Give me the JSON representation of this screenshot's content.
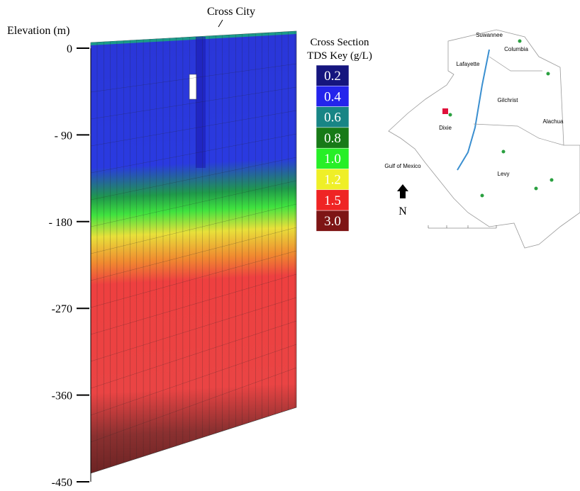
{
  "section": {
    "title": "Cross City",
    "axis_label": "Elevation (m)",
    "ylim": [
      0,
      -450
    ],
    "yticks": [
      {
        "value": 0,
        "label": "0"
      },
      {
        "value": -90,
        "label": "- 90"
      },
      {
        "value": -180,
        "label": "- 180"
      },
      {
        "value": -270,
        "label": "-270"
      },
      {
        "value": -360,
        "label": "-360"
      },
      {
        "value": -450,
        "label": "-450"
      }
    ]
  },
  "key": {
    "title": [
      "Cross Section",
      "TDS Key (g/L)"
    ],
    "entries": [
      {
        "label": "0.2",
        "color": "#15157e"
      },
      {
        "label": "0.4",
        "color": "#2424ec"
      },
      {
        "label": "0.6",
        "color": "#188585"
      },
      {
        "label": "0.8",
        "color": "#177a17"
      },
      {
        "label": "1.0",
        "color": "#27ef27"
      },
      {
        "label": "1.2",
        "color": "#efef27"
      },
      {
        "label": "1.5",
        "color": "#ef2424"
      },
      {
        "label": "3.0",
        "color": "#7e1515"
      }
    ]
  },
  "map": {
    "labels": [
      "Suwannee",
      "Columbia",
      "Lafayette",
      "Gilchrist",
      "Alachua",
      "Dixie",
      "Gulf of Mexico",
      "Levy"
    ],
    "north": "N"
  }
}
